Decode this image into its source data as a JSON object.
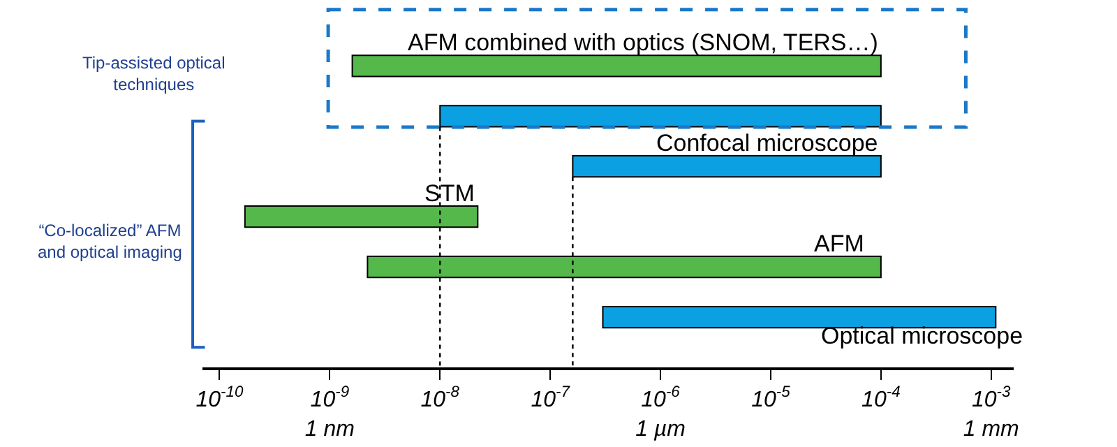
{
  "chart_data": {
    "type": "bar",
    "orientation": "horizontal",
    "log": "x",
    "categories": [
      "AFM combined with optics (SNOM, TERS…)",
      null,
      "Confocal microscope",
      "STM",
      "AFM",
      "Optical microscope"
    ],
    "base": [
      1.6e-09,
      1e-08,
      1.6e-07,
      1.7e-10,
      2.2e-09,
      3e-07
    ],
    "values": [
      9.99984e-05,
      9.999e-05,
      9.984e-05,
      2.183e-08,
      9.99978e-05,
      0.0011
    ],
    "colors": [
      "#55b84b",
      "#0aa0e2",
      "#0aa0e2",
      "#55b84b",
      "#55b84b",
      "#0aa0e2"
    ],
    "xlim": [
      7e-11,
      0.0016
    ],
    "xticks": [
      {
        "value": 1e-10,
        "label": "10$^{-10}$"
      },
      {
        "value": 1e-09,
        "label": "10$^{-9}$\n1 nm"
      },
      {
        "value": 1e-08,
        "label": "10$^{-8}$"
      },
      {
        "value": 1e-07,
        "label": "10$^{-7}$"
      },
      {
        "value": 1e-06,
        "label": "10$^{-6}$\n1 µm"
      },
      {
        "value": 1e-05,
        "label": "10$^{-5}$"
      },
      {
        "value": 0.0001,
        "label": "10$^{-4}$"
      },
      {
        "value": 0.001,
        "label": "10$^{-3}$\n1 mm"
      }
    ],
    "tick_labels": "x",
    "ref_lines": [
      {
        "axis": "x",
        "value": 1e-08,
        "line_style": "dotted"
      },
      {
        "axis": "x",
        "value": 1.6e-07,
        "line_style": "dotted"
      }
    ],
    "annotations": [
      "Tip-assisted optical techniques",
      "“Co-localized” AFM and optical imaging"
    ]
  }
}
